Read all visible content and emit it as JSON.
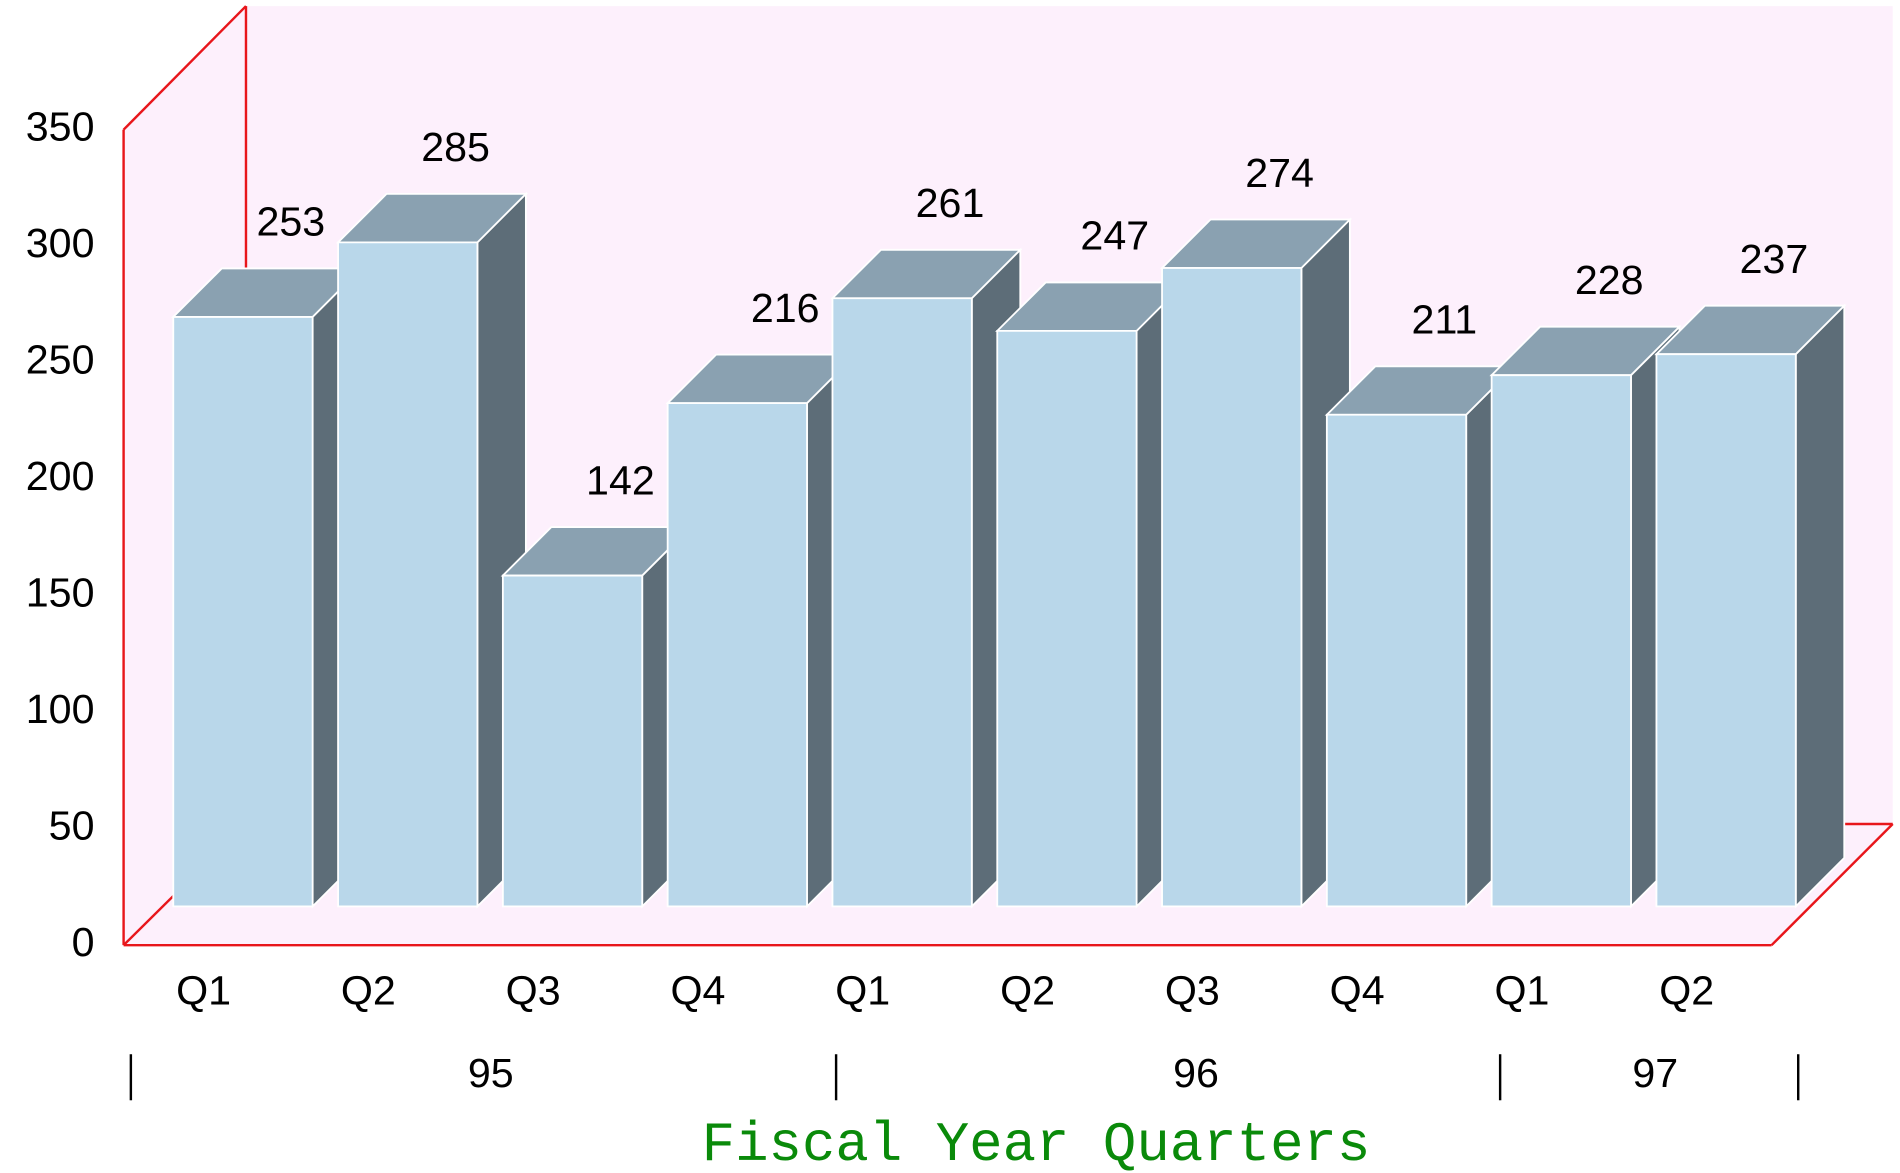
{
  "chart_data": {
    "type": "bar3d",
    "x_label": "Fiscal Year Quarters",
    "categories": [
      "Q1",
      "Q2",
      "Q3",
      "Q4",
      "Q1",
      "Q2",
      "Q3",
      "Q4",
      "Q1",
      "Q2"
    ],
    "group_labels": [
      "95",
      "96",
      "97"
    ],
    "values": [
      253,
      285,
      142,
      216,
      261,
      247,
      274,
      211,
      228,
      237
    ],
    "color": "#b9d7ea",
    "ylim": [
      0,
      350
    ],
    "yticks": [
      0,
      50,
      100,
      150,
      200,
      250,
      300,
      350
    ],
    "grid": false
  }
}
